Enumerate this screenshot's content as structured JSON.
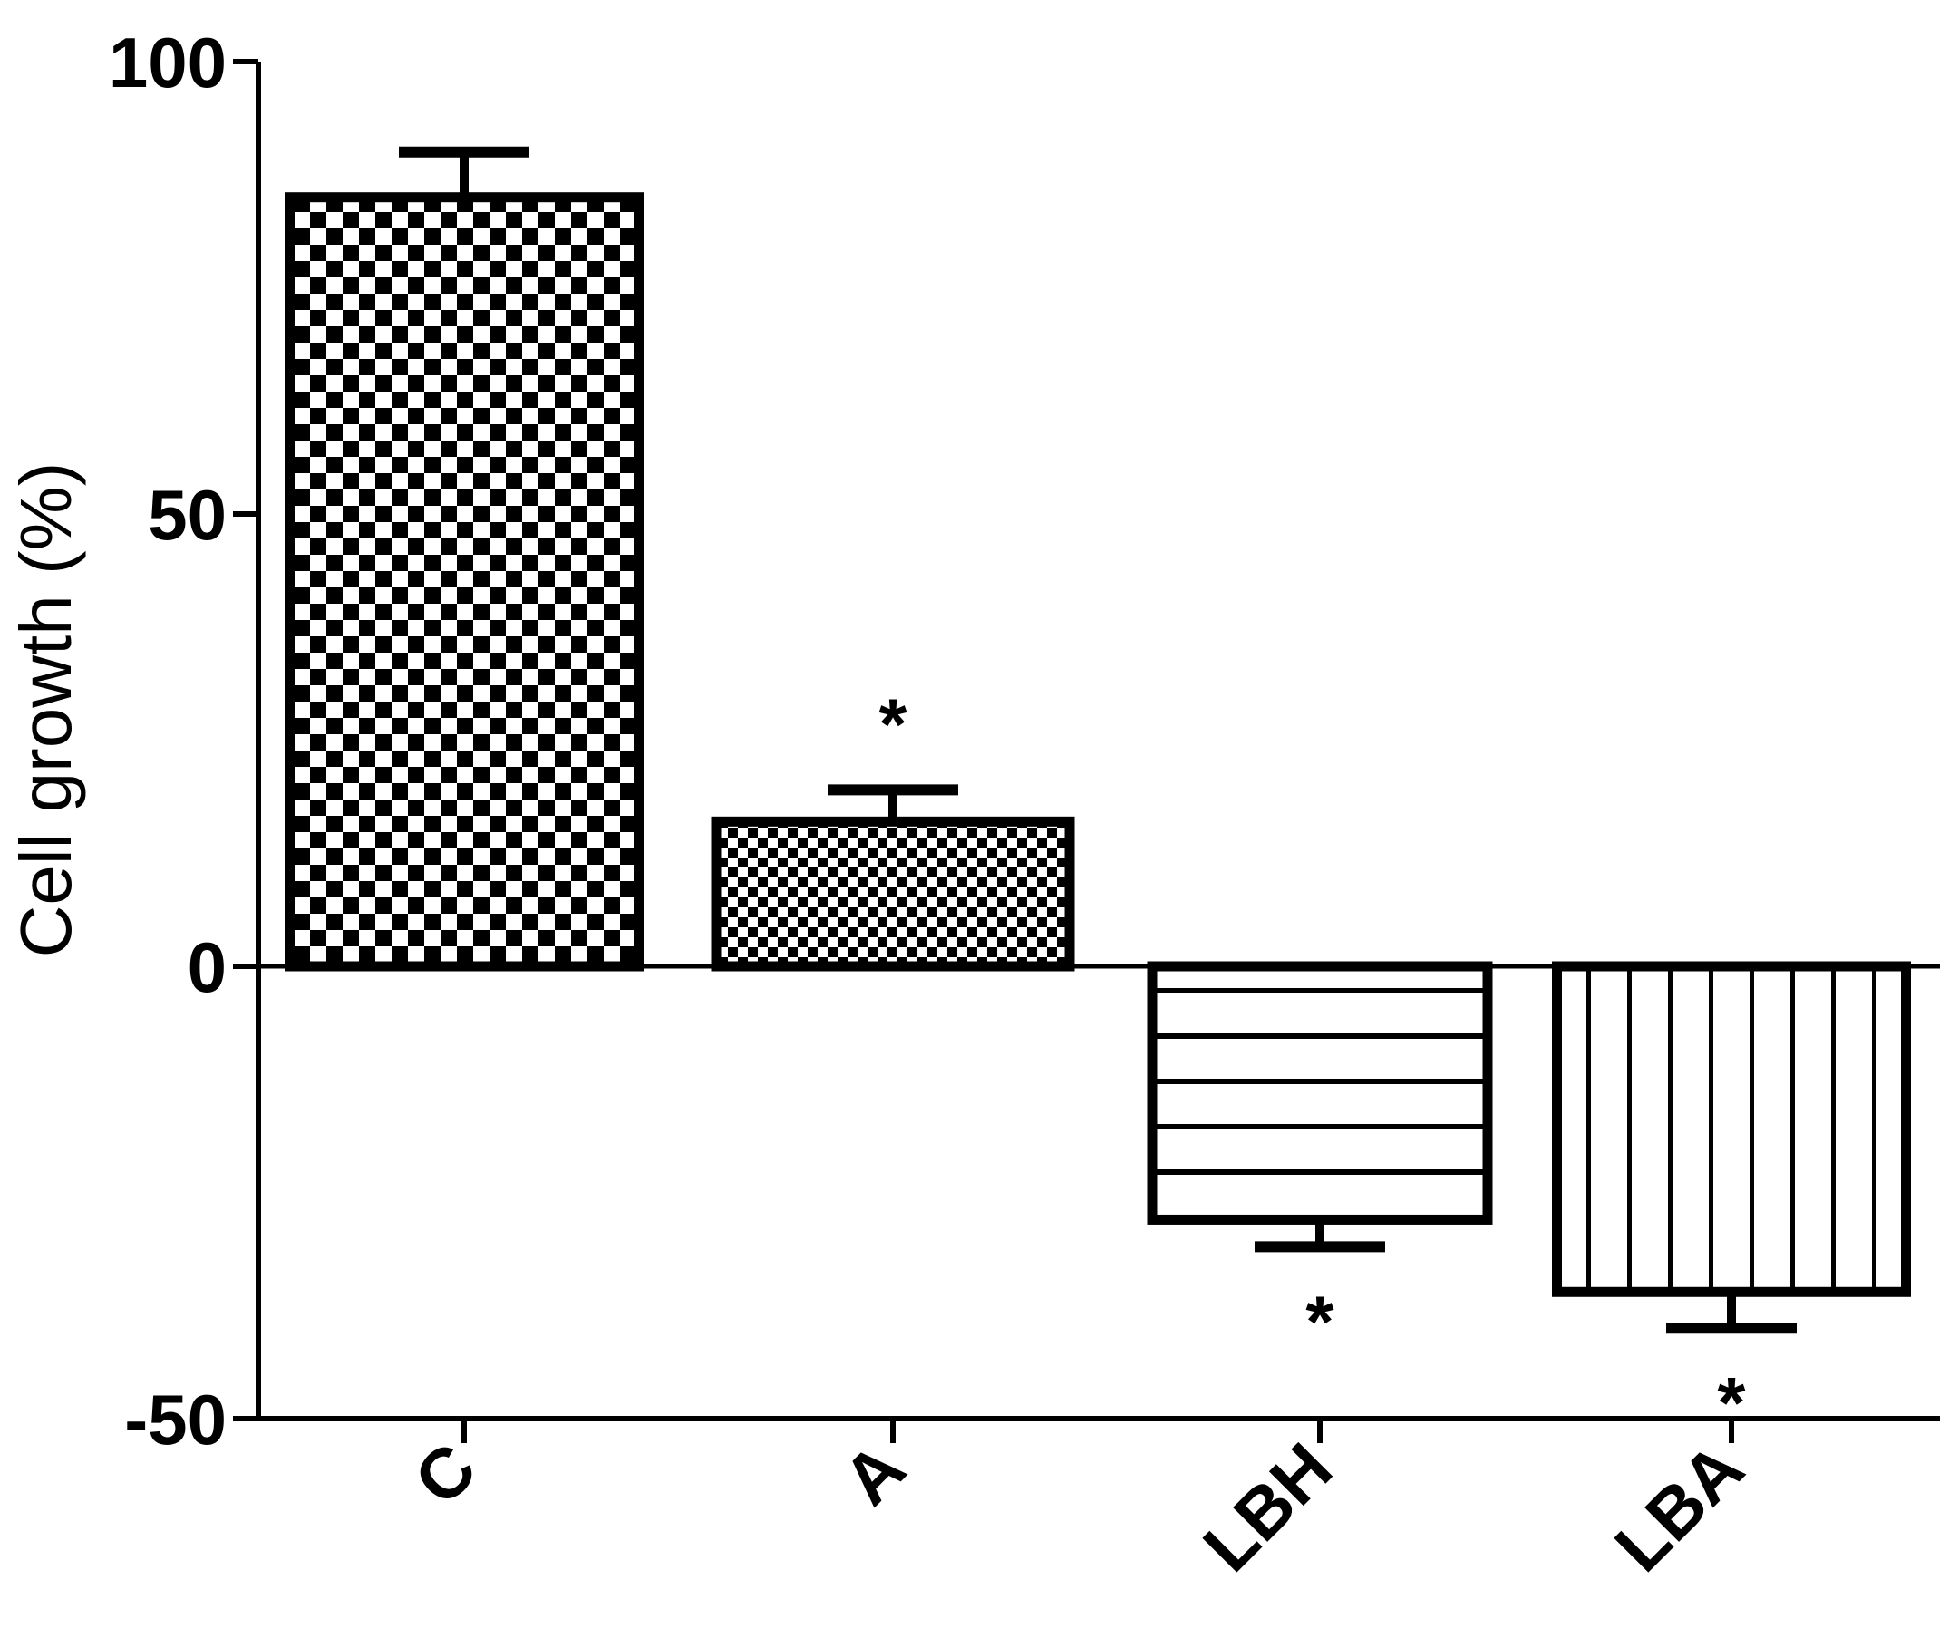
{
  "chart_data": {
    "type": "bar",
    "title": "",
    "xlabel": "",
    "ylabel": "Cell growth (%)",
    "ylim": [
      -50,
      100
    ],
    "yticks": [
      "100",
      "50",
      "0",
      "-50"
    ],
    "ytick_values": [
      100,
      50,
      0,
      -50
    ],
    "categories": [
      "C",
      "A",
      "LBH",
      "LBA"
    ],
    "values": [
      85,
      16,
      -28,
      -36
    ],
    "error": [
      5,
      3.5,
      3,
      4
    ],
    "significance": [
      "",
      "*",
      "*",
      "*"
    ],
    "patterns": [
      "checker-large",
      "checker-small",
      "horizontal-lines",
      "vertical-lines"
    ],
    "grid": false,
    "legend": "none"
  }
}
